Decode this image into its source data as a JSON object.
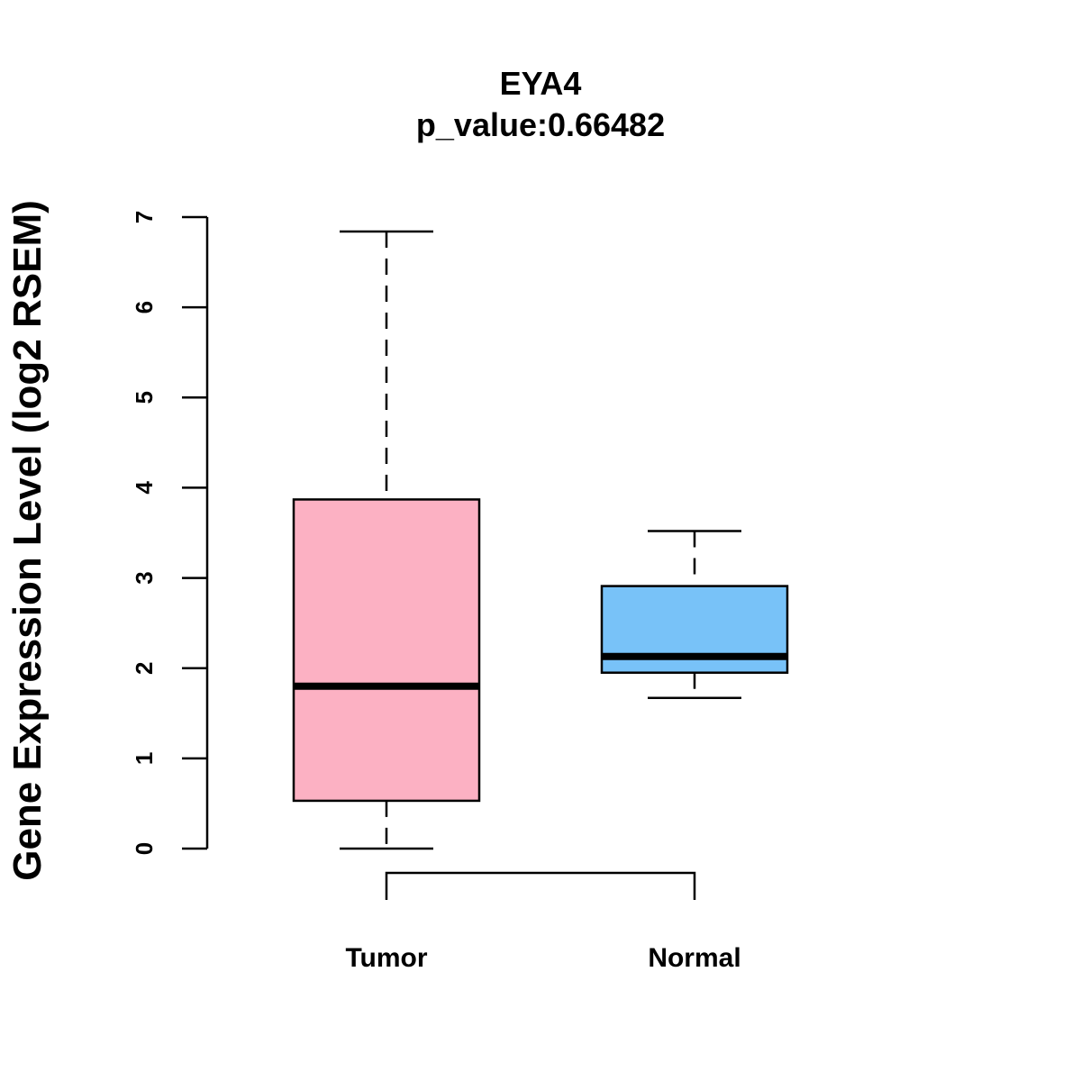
{
  "chart_data": {
    "type": "boxplot",
    "title": "EYA4",
    "subtitle": "p_value:0.66482",
    "xlabel": "",
    "ylabel": "Gene Expression Level (log2 RSEM)",
    "ylim": [
      0,
      7
    ],
    "yticks": [
      "0",
      "1",
      "2",
      "3",
      "4",
      "5",
      "6",
      "7"
    ],
    "categories": [
      "Tumor",
      "Normal"
    ],
    "series": [
      {
        "name": "Tumor",
        "whisker_low": 0.0,
        "q1": 0.53,
        "median": 1.8,
        "q3": 3.87,
        "whisker_high": 6.84,
        "color": "#FCB1C3"
      },
      {
        "name": "Normal",
        "whisker_low": 1.67,
        "q1": 1.95,
        "median": 2.13,
        "q3": 2.91,
        "whisker_high": 3.52,
        "color": "#78C2F8"
      }
    ],
    "comparison_bracket": [
      "Tumor",
      "Normal"
    ],
    "grid": false
  }
}
